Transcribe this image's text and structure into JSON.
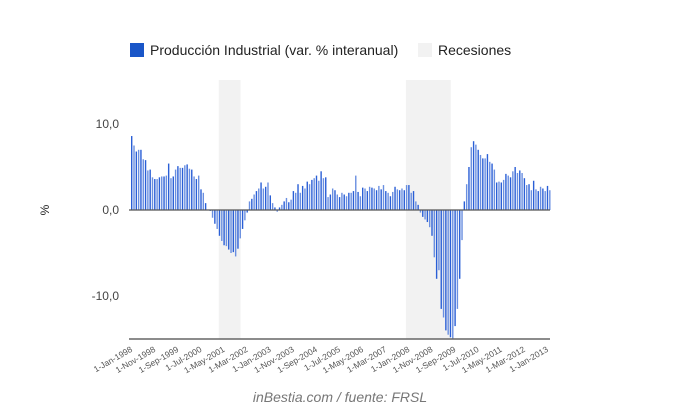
{
  "chart_data": {
    "type": "bar",
    "title": "",
    "xlabel": "",
    "ylabel": "%",
    "ylim": [
      -15,
      15
    ],
    "yticks": [
      {
        "value": 10,
        "label": "10,0"
      },
      {
        "value": 0,
        "label": "0,0"
      },
      {
        "value": -10,
        "label": "-10,0"
      }
    ],
    "start": "1-Jan-1998",
    "frequency": "monthly",
    "xtick_labels": [
      "1-Jan-1998",
      "1-Nov-1998",
      "1-Sep-1999",
      "1-Jul-2000",
      "1-May-2001",
      "1-Mar-2002",
      "1-Jan-2003",
      "1-Nov-2003",
      "1-Sep-2004",
      "1-Jul-2005",
      "1-May-2006",
      "1-Mar-2007",
      "1-Jan-2008",
      "1-Nov-2008",
      "1-Sep-2009",
      "1-Jul-2010",
      "1-May-2011",
      "1-Mar-2012",
      "1-Jan-2013"
    ],
    "xtick_step_months": 10,
    "legend_position": "top",
    "series": [
      {
        "name": "Producción Industrial (var. % interanual)",
        "color": "#3366cc",
        "values": [
          8.6,
          7.5,
          6.8,
          7.0,
          7.0,
          5.9,
          5.8,
          4.6,
          4.7,
          3.8,
          3.6,
          3.6,
          3.8,
          3.9,
          3.9,
          4.0,
          5.4,
          3.7,
          3.9,
          4.7,
          5.1,
          4.9,
          4.9,
          5.2,
          5.3,
          4.8,
          4.7,
          3.9,
          3.6,
          4.0,
          2.4,
          2.0,
          0.8,
          0.0,
          -0.1,
          -0.9,
          -1.6,
          -2.2,
          -3.0,
          -3.6,
          -4.1,
          -4.2,
          -4.6,
          -5.0,
          -4.9,
          -5.4,
          -4.5,
          -3.3,
          -2.2,
          -1.2,
          -0.3,
          1.0,
          1.3,
          1.8,
          2.2,
          2.5,
          3.2,
          2.5,
          2.7,
          3.2,
          1.7,
          0.8,
          0.3,
          -0.2,
          0.3,
          0.6,
          1.0,
          1.4,
          0.9,
          1.2,
          2.2,
          2.0,
          3.0,
          2.0,
          2.8,
          2.5,
          3.3,
          3.0,
          3.5,
          3.7,
          4.0,
          3.4,
          4.5,
          3.7,
          3.8,
          1.5,
          1.8,
          2.5,
          2.3,
          1.8,
          1.5,
          2.0,
          1.8,
          1.6,
          2.0,
          2.0,
          2.2,
          4.0,
          2.1,
          1.6,
          2.6,
          2.5,
          2.2,
          2.7,
          2.6,
          2.5,
          2.3,
          2.8,
          2.4,
          2.9,
          2.2,
          2.0,
          1.6,
          2.1,
          2.7,
          2.4,
          2.3,
          2.5,
          2.3,
          2.9,
          2.9,
          2.0,
          2.2,
          1.0,
          0.6,
          -0.3,
          -0.8,
          -1.1,
          -1.4,
          -2.0,
          -3.0,
          -5.5,
          -8.0,
          -7.0,
          -11.5,
          -12.5,
          -14.0,
          -14.5,
          -14.8,
          -15.0,
          -13.5,
          -11.5,
          -8.0,
          -3.5,
          1.0,
          3.0,
          5.0,
          7.3,
          8.0,
          7.6,
          7.0,
          6.4,
          6.0,
          6.0,
          6.5,
          5.6,
          5.4,
          4.7,
          3.2,
          3.3,
          3.2,
          3.5,
          4.2,
          4.0,
          3.8,
          4.5,
          5.0,
          4.3,
          4.6,
          4.3,
          3.7,
          2.9,
          3.0,
          2.3,
          3.4,
          2.4,
          2.2,
          2.7,
          2.5,
          2.2,
          2.8,
          2.3
        ]
      }
    ],
    "recessions": [
      {
        "name": "Recesiones",
        "start_month_index": 38,
        "end_month_index": 47,
        "color": "#f2f2f2"
      },
      {
        "name": "Recesiones",
        "start_month_index": 119,
        "end_month_index": 138,
        "color": "#f2f2f2"
      }
    ]
  },
  "legend": {
    "series_label": "Producción Industrial (var. % interanual)",
    "recession_label": "Recesiones"
  },
  "footer": "inBestia.com / fuente: FRSL"
}
